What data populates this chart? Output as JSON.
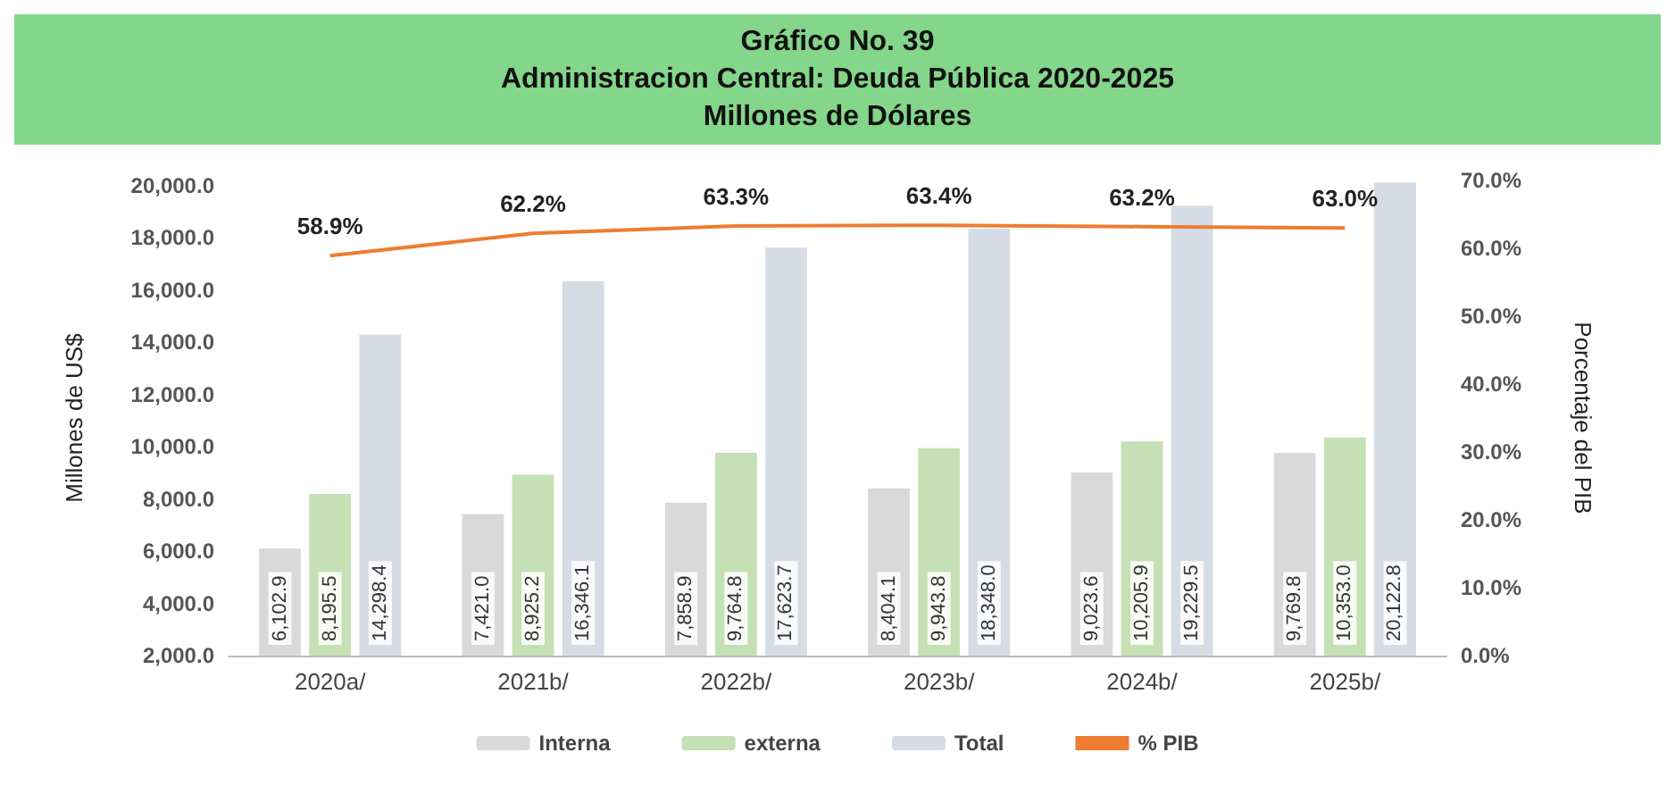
{
  "chart_data": {
    "type": "bar",
    "title": "Gráfico No. 39",
    "subtitle": "Administracion Central: Deuda Pública  2020-2025\nMillones de Dólares",
    "ylabel": "Millones de US$",
    "y2label": "Porcentaje del PIB",
    "categories": [
      "2020a/",
      "2021b/",
      "2022b/",
      "2023b/",
      "2024b/",
      "2025b/"
    ],
    "series": [
      {
        "name": "Interna",
        "color": "#d9d9d9",
        "values": [
          6102.9,
          7421.0,
          7858.9,
          8404.1,
          9023.6,
          9769.8
        ],
        "value_labels": [
          "6,102.9",
          "7,421.0",
          "7,858.9",
          "8,404.1",
          "9,023.6",
          "9,769.8"
        ]
      },
      {
        "name": "externa",
        "color": "#c5e0b4",
        "values": [
          8195.5,
          8925.2,
          9764.8,
          9943.8,
          10205.9,
          10353.0
        ],
        "value_labels": [
          "8,195.5",
          "8,925.2",
          "9,764.8",
          "9,943.8",
          "10,205.9",
          "10,353.0"
        ]
      },
      {
        "name": "Total",
        "color": "#d6dce5",
        "values": [
          14298.4,
          16346.1,
          17623.7,
          18348.0,
          19229.5,
          20122.8
        ],
        "value_labels": [
          "14,298.4",
          "16,346.1",
          "17,623.7",
          "18,348.0",
          "19,229.5",
          "20,122.8"
        ]
      },
      {
        "name": "% PIB",
        "type": "line",
        "axis": "y2",
        "color": "#ed7d31",
        "marker": "none",
        "values": [
          58.9,
          62.2,
          63.3,
          63.4,
          63.2,
          63.0
        ],
        "value_labels": [
          "58.9%",
          "62.2%",
          "63.3%",
          "63.4%",
          "63.2%",
          "63.0%"
        ]
      }
    ],
    "ylim": [
      2000,
      20200
    ],
    "yticks": [
      {
        "value": 2000,
        "label": "2,000.0"
      },
      {
        "value": 4000,
        "label": "4,000.0"
      },
      {
        "value": 6000,
        "label": "6,000.0"
      },
      {
        "value": 8000,
        "label": "8,000.0"
      },
      {
        "value": 10000,
        "label": "10,000.0"
      },
      {
        "value": 12000,
        "label": "12,000.0"
      },
      {
        "value": 14000,
        "label": "14,000.0"
      },
      {
        "value": 16000,
        "label": "16,000.0"
      },
      {
        "value": 18000,
        "label": "18,000.0"
      },
      {
        "value": 20000,
        "label": "20,000.0"
      }
    ],
    "y2lim": [
      0,
      70
    ],
    "y2ticks": [
      {
        "value": 0,
        "label": "0.0%"
      },
      {
        "value": 10,
        "label": "10.0%"
      },
      {
        "value": 20,
        "label": "20.0%"
      },
      {
        "value": 30,
        "label": "30.0%"
      },
      {
        "value": 40,
        "label": "40.0%"
      },
      {
        "value": 50,
        "label": "50.0%"
      },
      {
        "value": 60,
        "label": "60.0%"
      },
      {
        "value": 70,
        "label": "70.0%"
      }
    ],
    "grid": false,
    "legend": "bottom"
  }
}
